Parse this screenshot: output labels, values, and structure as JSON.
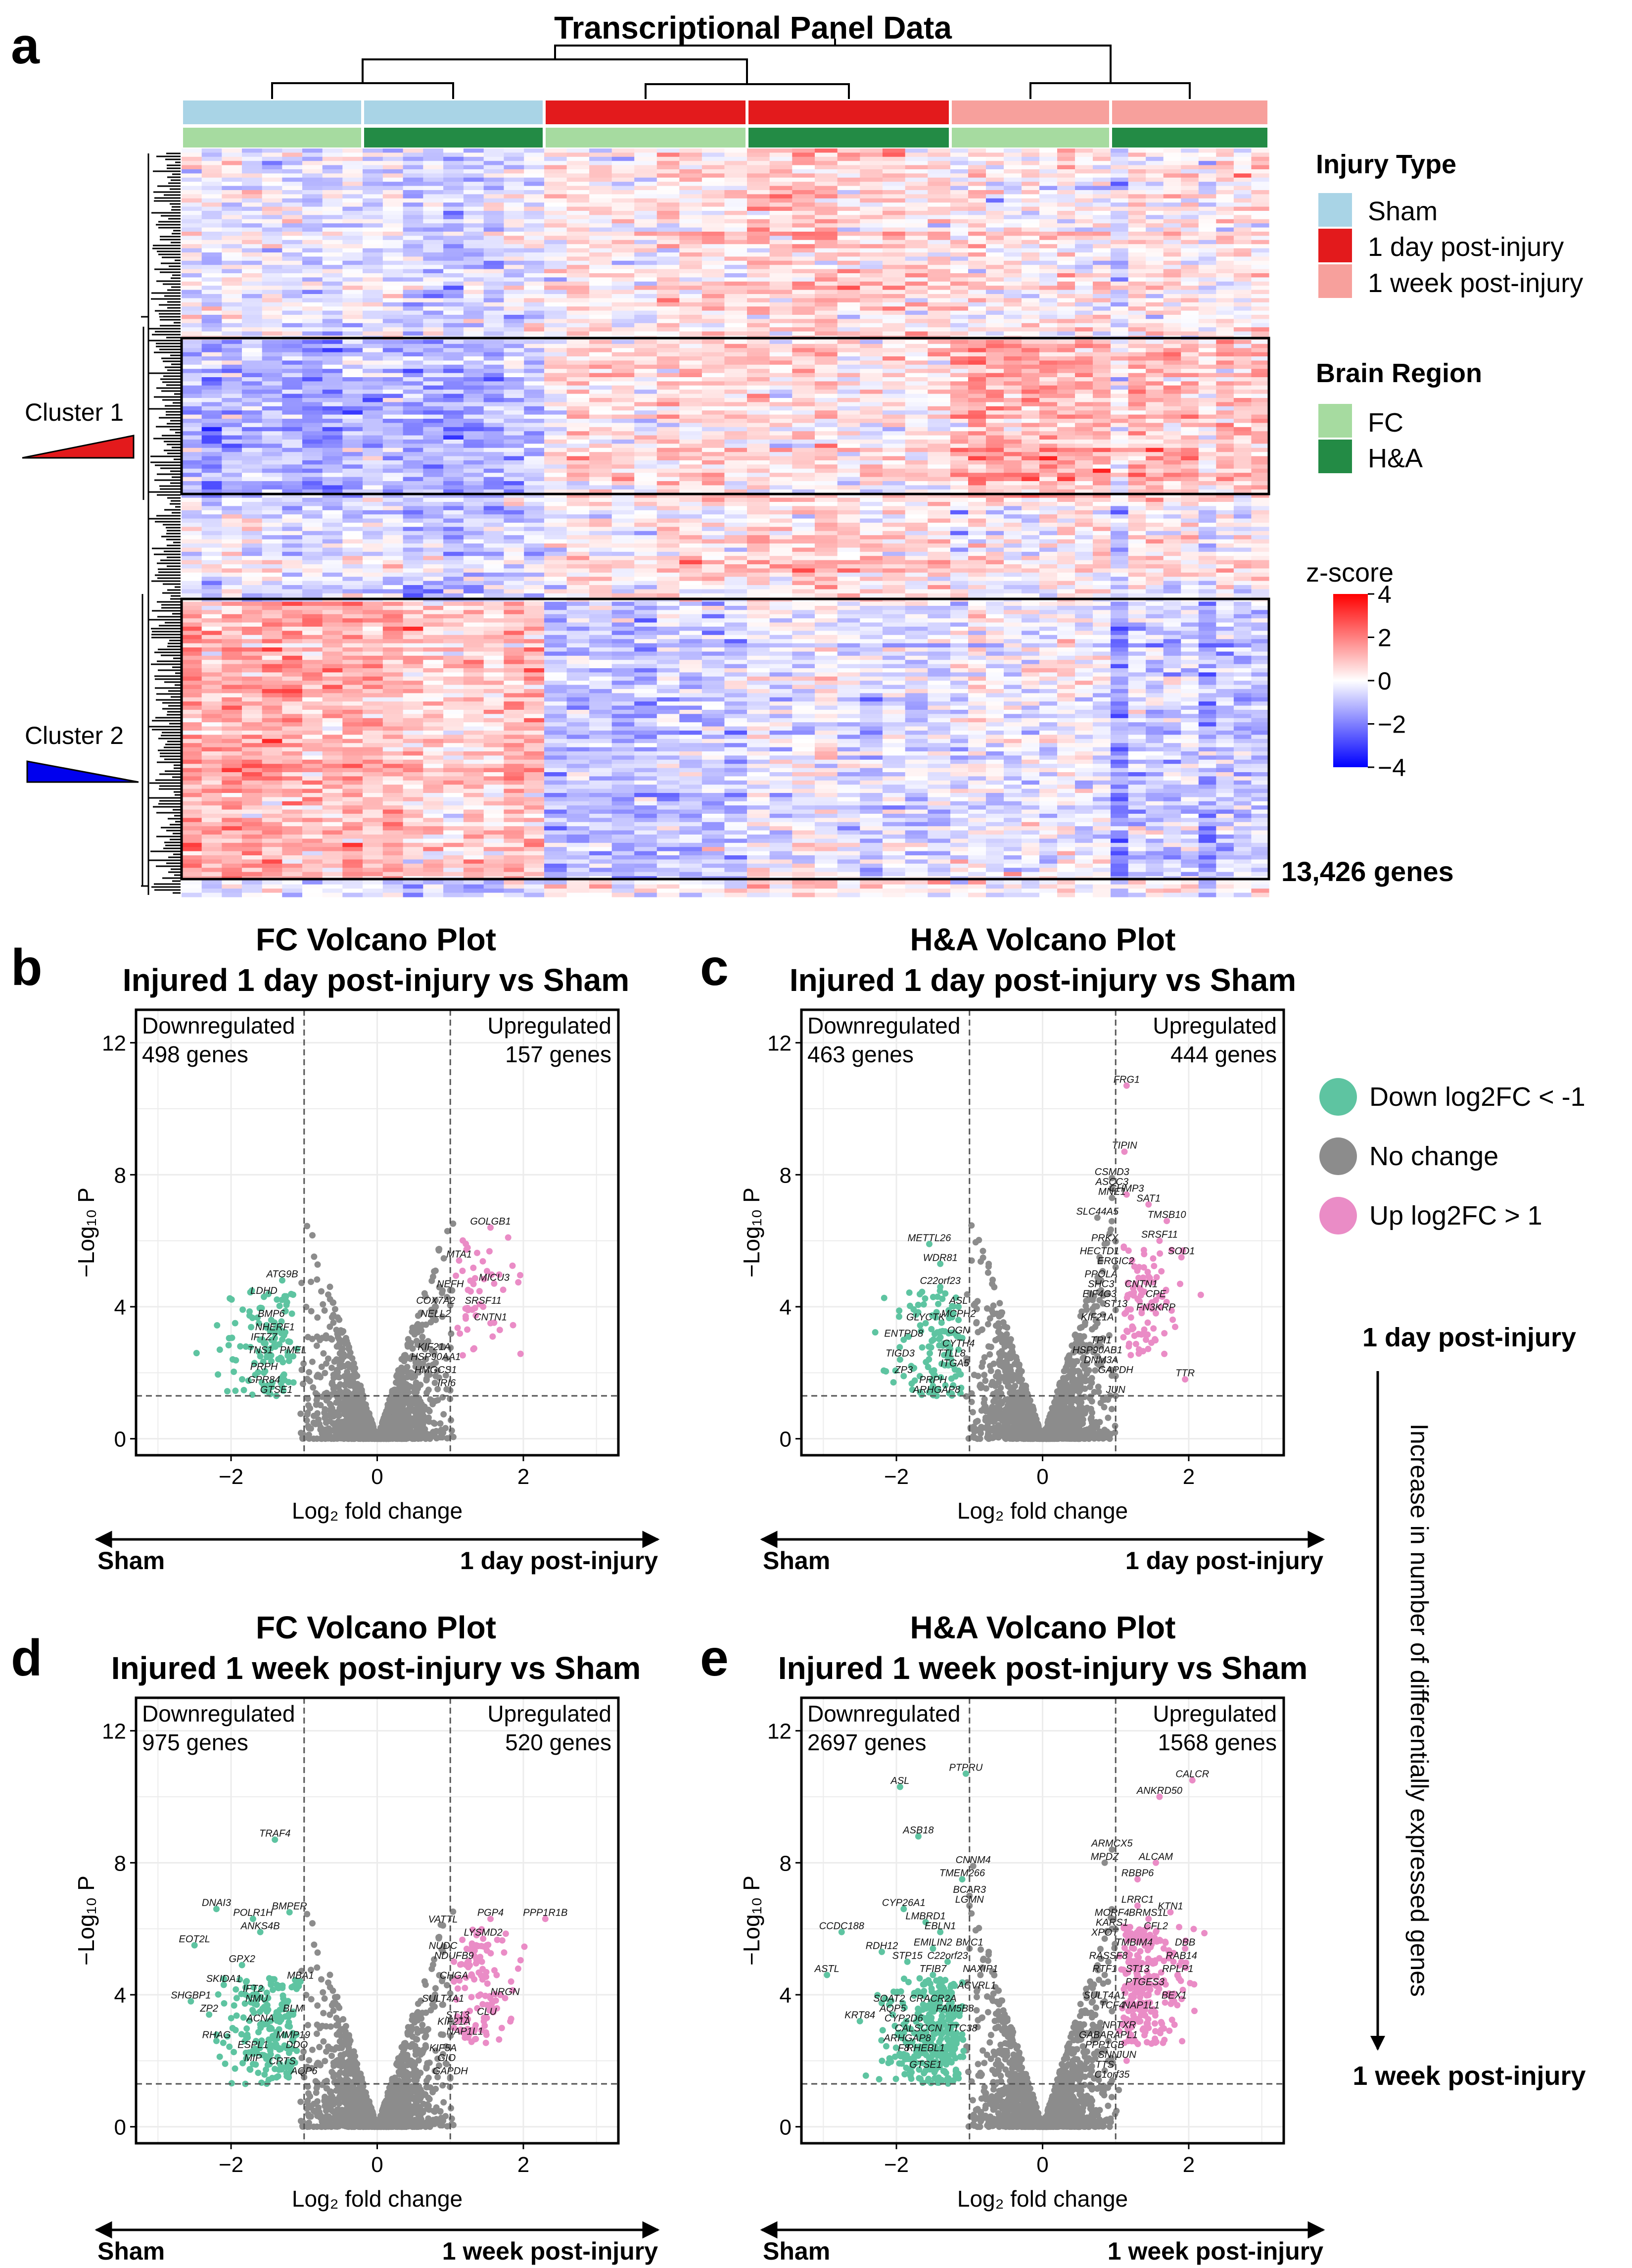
{
  "figure": {
    "panels": {
      "a": "a",
      "b": "b",
      "c": "c",
      "d": "d",
      "e": "e"
    }
  },
  "heatmap": {
    "title": "Transcriptional Panel Data",
    "gene_count_label": "13,426 genes",
    "cluster1_label": "Cluster 1",
    "cluster2_label": "Cluster 2",
    "legend_injury_title": "Injury Type",
    "legend_injury_items": [
      {
        "label": "Sham",
        "color": "#a9d4e6"
      },
      {
        "label": "1 day post-injury",
        "color": "#e31a1c"
      },
      {
        "label": "1 week post-injury",
        "color": "#f7a09c"
      }
    ],
    "legend_region_title": "Brain Region",
    "legend_region_items": [
      {
        "label": "FC",
        "color": "#a6dba0"
      },
      {
        "label": "H&A",
        "color": "#238b45"
      }
    ],
    "zscore_title": "z-score",
    "zscore_ticks": [
      "4",
      "2",
      "0",
      "−2",
      "−4"
    ],
    "zscore_range": [
      -4,
      4
    ],
    "column_groups": [
      {
        "injury": "Sham",
        "region": "FC"
      },
      {
        "injury": "Sham",
        "region": "H&A"
      },
      {
        "injury": "1 day post-injury",
        "region": "FC"
      },
      {
        "injury": "1 day post-injury",
        "region": "H&A"
      },
      {
        "injury": "1 week post-injury",
        "region": "FC"
      },
      {
        "injury": "1 week post-injury",
        "region": "H&A"
      }
    ]
  },
  "side": {
    "day_label": "1 day post-injury",
    "week_label": "1 week post-injury",
    "arrow_text": "Increase in number of differentially expressed genes"
  },
  "legend_points": [
    {
      "label": "Down log2FC < -1",
      "color": "#5ec4a1"
    },
    {
      "label": "No change",
      "color": "#8c8c8c"
    },
    {
      "label": "Up log2FC > 1",
      "color": "#ea8cc6"
    }
  ],
  "axis_common": {
    "xlabel": "Log₂ fold change",
    "ylabel": "−Log₁₀ P",
    "xticks": [
      "−2",
      "0",
      "2"
    ],
    "yticks": [
      "0",
      "4",
      "8",
      "12"
    ],
    "down_title": "Downregulated",
    "up_title": "Upregulated",
    "sham_label": "Sham"
  },
  "chart_data": [
    {
      "type": "scatter",
      "id": "b",
      "title1": "FC Volcano Plot",
      "title2": "Injured 1 day post-injury vs Sham",
      "xlim": [
        -3.3,
        3.3
      ],
      "ylim": [
        -0.5,
        13
      ],
      "fc_threshold": 1,
      "p_threshold": 1.3,
      "down_count": "498 genes",
      "up_count": "157 genes",
      "arrow_right": "1 day post-injury",
      "labels": [
        {
          "g": "GOLGB1",
          "x": 1.55,
          "y": 6.4
        },
        {
          "g": "MTA1",
          "x": 1.12,
          "y": 5.4
        },
        {
          "g": "MICU3",
          "x": 1.6,
          "y": 4.7
        },
        {
          "g": "NEFH",
          "x": 1.0,
          "y": 4.5
        },
        {
          "g": "COX7A2",
          "x": 0.8,
          "y": 4.0
        },
        {
          "g": "SRSF11",
          "x": 1.45,
          "y": 4.0
        },
        {
          "g": "NELL2",
          "x": 0.8,
          "y": 3.6
        },
        {
          "g": "CNTN1",
          "x": 1.55,
          "y": 3.5
        },
        {
          "g": "KIF21A",
          "x": 0.78,
          "y": 2.6
        },
        {
          "g": "HSP90AA1",
          "x": 0.8,
          "y": 2.3
        },
        {
          "g": "HMGCS1",
          "x": 0.8,
          "y": 1.9
        },
        {
          "g": "IRI6",
          "x": 0.95,
          "y": 1.5
        },
        {
          "g": "ATG9B",
          "x": -1.3,
          "y": 4.8
        },
        {
          "g": "LDHD",
          "x": -1.55,
          "y": 4.3
        },
        {
          "g": "BMP6",
          "x": -1.45,
          "y": 3.6
        },
        {
          "g": "NHERF1",
          "x": -1.4,
          "y": 3.2
        },
        {
          "g": "IFTZ7",
          "x": -1.55,
          "y": 2.9
        },
        {
          "g": "TNS1",
          "x": -1.6,
          "y": 2.5
        },
        {
          "g": "PMEL",
          "x": -1.15,
          "y": 2.5
        },
        {
          "g": "PRPH",
          "x": -1.55,
          "y": 2.0
        },
        {
          "g": "GPR84",
          "x": -1.55,
          "y": 1.6
        },
        {
          "g": "GTSE1",
          "x": -1.38,
          "y": 1.3
        }
      ]
    },
    {
      "type": "scatter",
      "id": "c",
      "title1": "H&A Volcano Plot",
      "title2": "Injured 1 day post-injury vs Sham",
      "xlim": [
        -3.3,
        3.3
      ],
      "ylim": [
        -0.5,
        13
      ],
      "fc_threshold": 1,
      "p_threshold": 1.3,
      "down_count": "463 genes",
      "up_count": "444 genes",
      "arrow_right": "1 day post-injury",
      "labels": [
        {
          "g": "FRG1",
          "x": 1.15,
          "y": 10.7
        },
        {
          "g": "TIPIN",
          "x": 1.12,
          "y": 8.7
        },
        {
          "g": "CSMD3",
          "x": 0.95,
          "y": 7.9
        },
        {
          "g": "ASCC3",
          "x": 0.95,
          "y": 7.6
        },
        {
          "g": "CHMP3",
          "x": 1.15,
          "y": 7.4
        },
        {
          "g": "MNE1",
          "x": 0.95,
          "y": 7.3
        },
        {
          "g": "SAT1",
          "x": 1.45,
          "y": 7.1
        },
        {
          "g": "SLC44A5",
          "x": 0.75,
          "y": 6.7
        },
        {
          "g": "TMSB10",
          "x": 1.7,
          "y": 6.6
        },
        {
          "g": "SRSF11",
          "x": 1.6,
          "y": 6.0
        },
        {
          "g": "SOD1",
          "x": 1.9,
          "y": 5.5
        },
        {
          "g": "PRKX",
          "x": 0.85,
          "y": 5.9
        },
        {
          "g": "HECTD1",
          "x": 0.78,
          "y": 5.5
        },
        {
          "g": "ERGIC2",
          "x": 1.0,
          "y": 5.2
        },
        {
          "g": "PPOLA",
          "x": 0.8,
          "y": 4.8
        },
        {
          "g": "CNTN1",
          "x": 1.35,
          "y": 4.5
        },
        {
          "g": "SHC3",
          "x": 0.8,
          "y": 4.5
        },
        {
          "g": "CPE",
          "x": 1.55,
          "y": 4.2
        },
        {
          "g": "EIF4G3",
          "x": 0.78,
          "y": 4.2
        },
        {
          "g": "FN3KRP",
          "x": 1.55,
          "y": 3.8
        },
        {
          "g": "ST13",
          "x": 1.0,
          "y": 3.9
        },
        {
          "g": "KIF21A",
          "x": 0.75,
          "y": 3.5
        },
        {
          "g": "TPI1",
          "x": 0.8,
          "y": 2.8
        },
        {
          "g": "HSP90AB1",
          "x": 0.75,
          "y": 2.5
        },
        {
          "g": "DNM3A",
          "x": 0.8,
          "y": 2.2
        },
        {
          "g": "GAPDH",
          "x": 1.0,
          "y": 1.9
        },
        {
          "g": "JUN",
          "x": 1.0,
          "y": 1.3
        },
        {
          "g": "TTR",
          "x": 1.95,
          "y": 1.8
        },
        {
          "g": "METTL26",
          "x": -1.55,
          "y": 5.9
        },
        {
          "g": "WDR81",
          "x": -1.4,
          "y": 5.3
        },
        {
          "g": "C22orf23",
          "x": -1.4,
          "y": 4.6
        },
        {
          "g": "ASL",
          "x": -1.15,
          "y": 4.0
        },
        {
          "g": "MCPH2",
          "x": -1.15,
          "y": 3.6
        },
        {
          "g": "GLYCTK",
          "x": -1.6,
          "y": 3.5
        },
        {
          "g": "OGN",
          "x": -1.15,
          "y": 3.1
        },
        {
          "g": "ENTPD8",
          "x": -1.9,
          "y": 3.0
        },
        {
          "g": "CYTH4",
          "x": -1.15,
          "y": 2.7
        },
        {
          "g": "TIGD3",
          "x": -1.95,
          "y": 2.4
        },
        {
          "g": "TTLL8",
          "x": -1.25,
          "y": 2.4
        },
        {
          "g": "ITGA5",
          "x": -1.2,
          "y": 2.1
        },
        {
          "g": "ZP3",
          "x": -1.9,
          "y": 1.9
        },
        {
          "g": "PRPH",
          "x": -1.5,
          "y": 1.6
        },
        {
          "g": "ARHGAP8",
          "x": -1.45,
          "y": 1.3
        }
      ]
    },
    {
      "type": "scatter",
      "id": "d",
      "title1": "FC Volcano Plot",
      "title2": "Injured 1 week post-injury vs Sham",
      "xlim": [
        -3.3,
        3.3
      ],
      "ylim": [
        -0.5,
        13
      ],
      "fc_threshold": 1,
      "p_threshold": 1.3,
      "down_count": "975 genes",
      "up_count": "520 genes",
      "arrow_right": "1 week post-injury",
      "labels": [
        {
          "g": "TRAF4",
          "x": -1.4,
          "y": 8.7
        },
        {
          "g": "DNAI3",
          "x": -2.2,
          "y": 6.6
        },
        {
          "g": "BMPER",
          "x": -1.2,
          "y": 6.5
        },
        {
          "g": "POLR1H",
          "x": -1.7,
          "y": 6.3
        },
        {
          "g": "ANKS4B",
          "x": -1.6,
          "y": 5.9
        },
        {
          "g": "EOT2L",
          "x": -2.5,
          "y": 5.5
        },
        {
          "g": "GPX2",
          "x": -1.85,
          "y": 4.9
        },
        {
          "g": "MBA1",
          "x": -1.05,
          "y": 4.4
        },
        {
          "g": "SKIDA1",
          "x": -2.1,
          "y": 4.3
        },
        {
          "g": "IFT2",
          "x": -1.7,
          "y": 4.0
        },
        {
          "g": "SHGBP1",
          "x": -2.55,
          "y": 3.8
        },
        {
          "g": "NMU",
          "x": -1.65,
          "y": 3.7
        },
        {
          "g": "ZP2",
          "x": -2.3,
          "y": 3.4
        },
        {
          "g": "BLM",
          "x": -1.15,
          "y": 3.4
        },
        {
          "g": "ACNA",
          "x": -1.6,
          "y": 3.1
        },
        {
          "g": "RHAG",
          "x": -2.2,
          "y": 2.6
        },
        {
          "g": "MMP19",
          "x": -1.15,
          "y": 2.6
        },
        {
          "g": "ESPL1",
          "x": -1.7,
          "y": 2.3
        },
        {
          "g": "DDO",
          "x": -1.1,
          "y": 2.3
        },
        {
          "g": "MIP",
          "x": -1.7,
          "y": 1.9
        },
        {
          "g": "CRTS",
          "x": -1.3,
          "y": 1.8
        },
        {
          "g": "AQP6",
          "x": -1.0,
          "y": 1.5
        },
        {
          "g": "PGP4",
          "x": 1.55,
          "y": 6.3
        },
        {
          "g": "PPP1R1B",
          "x": 2.3,
          "y": 6.3
        },
        {
          "g": "VATTL",
          "x": 0.9,
          "y": 6.1
        },
        {
          "g": "LYSMD2",
          "x": 1.45,
          "y": 5.7
        },
        {
          "g": "NUDC",
          "x": 0.9,
          "y": 5.3
        },
        {
          "g": "NDUFB9",
          "x": 1.05,
          "y": 5.0
        },
        {
          "g": "CHGA",
          "x": 1.05,
          "y": 4.4
        },
        {
          "g": "NRGN",
          "x": 1.75,
          "y": 3.9
        },
        {
          "g": "SULT4A1",
          "x": 0.9,
          "y": 3.7
        },
        {
          "g": "ST13",
          "x": 1.1,
          "y": 3.2
        },
        {
          "g": "CLU",
          "x": 1.5,
          "y": 3.3
        },
        {
          "g": "KIF21A",
          "x": 1.05,
          "y": 3.0
        },
        {
          "g": "NAP1L1",
          "x": 1.2,
          "y": 2.7
        },
        {
          "g": "KIF5A",
          "x": 0.9,
          "y": 2.2
        },
        {
          "g": "GIO",
          "x": 0.95,
          "y": 1.9
        },
        {
          "g": "GAPDH",
          "x": 1.0,
          "y": 1.5
        }
      ]
    },
    {
      "type": "scatter",
      "id": "e",
      "title1": "H&A Volcano Plot",
      "title2": "Injured 1 week post-injury vs Sham",
      "xlim": [
        -3.3,
        3.3
      ],
      "ylim": [
        -0.5,
        13
      ],
      "fc_threshold": 1,
      "p_threshold": 1.3,
      "down_count": "2697 genes",
      "up_count": "1568 genes",
      "arrow_right": "1 week post-injury",
      "labels": [
        {
          "g": "PTPRU",
          "x": -1.05,
          "y": 10.7
        },
        {
          "g": "ASL",
          "x": -1.95,
          "y": 10.3
        },
        {
          "g": "ASB18",
          "x": -1.7,
          "y": 8.8
        },
        {
          "g": "CNNM4",
          "x": -0.95,
          "y": 7.9
        },
        {
          "g": "TMEM266",
          "x": -1.1,
          "y": 7.5
        },
        {
          "g": "BCAR3",
          "x": -1.0,
          "y": 7.0
        },
        {
          "g": "LGMN",
          "x": -1.0,
          "y": 6.7
        },
        {
          "g": "CYP26A1",
          "x": -1.9,
          "y": 6.6
        },
        {
          "g": "LMBRD1",
          "x": -1.6,
          "y": 6.2
        },
        {
          "g": "CCDC188",
          "x": -2.75,
          "y": 5.9
        },
        {
          "g": "EBLN1",
          "x": -1.4,
          "y": 5.9
        },
        {
          "g": "RDH12",
          "x": -2.2,
          "y": 5.3
        },
        {
          "g": "EMILIN2",
          "x": -1.5,
          "y": 5.4
        },
        {
          "g": "BMC1",
          "x": -1.0,
          "y": 5.4
        },
        {
          "g": "STP15",
          "x": -1.85,
          "y": 5.0
        },
        {
          "g": "C22orf23",
          "x": -1.3,
          "y": 5.0
        },
        {
          "g": "ASTL",
          "x": -2.95,
          "y": 4.6
        },
        {
          "g": "TFIB7",
          "x": -1.5,
          "y": 4.6
        },
        {
          "g": "NAXIP1",
          "x": -0.85,
          "y": 4.6
        },
        {
          "g": "ACVRL1",
          "x": -0.9,
          "y": 4.1
        },
        {
          "g": "SOAT2",
          "x": -2.1,
          "y": 3.7
        },
        {
          "g": "CRACR2A",
          "x": -1.5,
          "y": 3.7
        },
        {
          "g": "KRT84",
          "x": -2.5,
          "y": 3.2
        },
        {
          "g": "AQP5",
          "x": -2.05,
          "y": 3.4
        },
        {
          "g": "FAM5B8",
          "x": -1.2,
          "y": 3.4
        },
        {
          "g": "CYP2D6",
          "x": -1.9,
          "y": 3.1
        },
        {
          "g": "CALSCCN",
          "x": -1.7,
          "y": 2.8
        },
        {
          "g": "TTC38",
          "x": -1.1,
          "y": 2.8
        },
        {
          "g": "ARHGAP8",
          "x": -1.85,
          "y": 2.5
        },
        {
          "g": "F8",
          "x": -1.9,
          "y": 2.2
        },
        {
          "g": "RHEBL1",
          "x": -1.6,
          "y": 2.2
        },
        {
          "g": "GTSE1",
          "x": -1.6,
          "y": 1.7
        },
        {
          "g": "CALCR",
          "x": 2.05,
          "y": 10.5
        },
        {
          "g": "ANKRD50",
          "x": 1.6,
          "y": 10.0
        },
        {
          "g": "ARMCX5",
          "x": 0.95,
          "y": 8.4
        },
        {
          "g": "MPDZ",
          "x": 0.85,
          "y": 8.0
        },
        {
          "g": "ALCAM",
          "x": 1.55,
          "y": 8.0
        },
        {
          "g": "RBBP6",
          "x": 1.3,
          "y": 7.5
        },
        {
          "g": "LRRC1",
          "x": 1.3,
          "y": 6.7
        },
        {
          "g": "BRMS1L",
          "x": 1.45,
          "y": 6.3
        },
        {
          "g": "KTN1",
          "x": 1.75,
          "y": 6.5
        },
        {
          "g": "KARS1",
          "x": 0.95,
          "y": 6.0
        },
        {
          "g": "CFL2",
          "x": 1.55,
          "y": 5.9
        },
        {
          "g": "MORF4",
          "x": 0.95,
          "y": 6.3
        },
        {
          "g": "XPOT",
          "x": 0.85,
          "y": 5.7
        },
        {
          "g": "TMBIM4",
          "x": 1.25,
          "y": 5.4
        },
        {
          "g": "DBB",
          "x": 1.95,
          "y": 5.4
        },
        {
          "g": "RAB14",
          "x": 1.9,
          "y": 5.0
        },
        {
          "g": "RASSF8",
          "x": 0.9,
          "y": 5.0
        },
        {
          "g": "RTF1",
          "x": 0.85,
          "y": 4.6
        },
        {
          "g": "ST13",
          "x": 1.3,
          "y": 4.6
        },
        {
          "g": "RPLP1",
          "x": 1.85,
          "y": 4.6
        },
        {
          "g": "PTGES3",
          "x": 1.4,
          "y": 4.2
        },
        {
          "g": "SULT4A1",
          "x": 0.85,
          "y": 3.8
        },
        {
          "g": "BEX1",
          "x": 1.8,
          "y": 3.8
        },
        {
          "g": "TCF4",
          "x": 0.95,
          "y": 3.5
        },
        {
          "g": "NAP1L1",
          "x": 1.35,
          "y": 3.5
        },
        {
          "g": "NPTXR",
          "x": 1.05,
          "y": 2.9
        },
        {
          "g": "GABARAPL1",
          "x": 0.9,
          "y": 2.6
        },
        {
          "g": "PPP1CB",
          "x": 0.85,
          "y": 2.3
        },
        {
          "g": "SNN",
          "x": 0.9,
          "y": 2.0
        },
        {
          "g": "JUN",
          "x": 1.15,
          "y": 2.0
        },
        {
          "g": "TTS",
          "x": 0.85,
          "y": 1.7
        },
        {
          "g": "C1orf35",
          "x": 0.95,
          "y": 1.4
        }
      ]
    }
  ]
}
